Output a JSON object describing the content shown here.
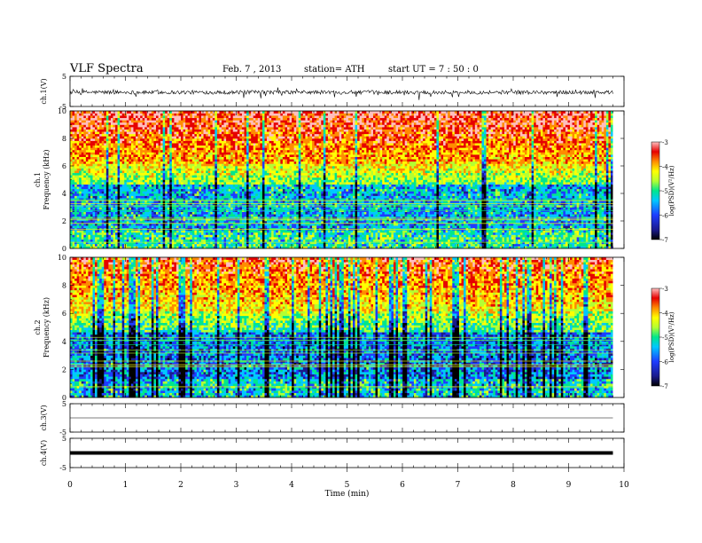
{
  "header": {
    "title": "VLF  Spectra",
    "date": "Feb. 7  , 2013",
    "station": "station= ATH",
    "start": "start  UT  =   7  : 50 : 0"
  },
  "chart_data": [
    {
      "type": "line",
      "panel": "ch1-waveform",
      "ylabel": "ch.1(V)",
      "ylim": [
        -5,
        5
      ],
      "yticks": [
        "5",
        "-5"
      ],
      "xlim": [
        0,
        9.8
      ],
      "description_level": 0,
      "series": [
        {
          "values_range": [
            -2.5,
            1.5
          ]
        }
      ]
    },
    {
      "type": "heatmap",
      "panel": "ch1-spectrogram",
      "ylabel": "ch.1\nFrequency  (kHz)",
      "ylim": [
        0,
        10
      ],
      "yticks": [
        "0",
        "2",
        "4",
        "6",
        "8",
        "10"
      ],
      "xlim": [
        0,
        9.8
      ],
      "colorbar": {
        "label": "log(PSD)(V²/Hz)",
        "range": [
          -7,
          -3
        ],
        "ticks": [
          "-7",
          "-6",
          "-5",
          "-4",
          "-3"
        ]
      }
    },
    {
      "type": "heatmap",
      "panel": "ch2-spectrogram",
      "ylabel": "ch.2\nFrequency  (kHz)",
      "ylim": [
        0,
        10
      ],
      "yticks": [
        "0",
        "2",
        "4",
        "6",
        "8",
        "10"
      ],
      "xlim": [
        0,
        9.8
      ],
      "colorbar": {
        "label": "log(PSD)(V²/Hz)",
        "range": [
          -7,
          -3
        ],
        "ticks": [
          "-7",
          "-6",
          "-5",
          "-4",
          "-3"
        ]
      }
    },
    {
      "type": "line",
      "panel": "ch3-waveform",
      "ylabel": "ch.3(V)",
      "ylim": [
        -5,
        5
      ],
      "yticks": [
        "5",
        "-5"
      ],
      "xlim": [
        0,
        9.8
      ],
      "series": [
        {
          "values_range": [
            0,
            0
          ]
        }
      ]
    },
    {
      "type": "line",
      "panel": "ch4-waveform",
      "ylabel": "ch.4(V)",
      "ylim": [
        -5,
        5
      ],
      "yticks": [
        "5",
        "-5"
      ],
      "xlim": [
        0,
        9.8
      ],
      "series": [
        {
          "values_range": [
            -0.3,
            0.3
          ]
        }
      ]
    }
  ],
  "xaxis": {
    "label": "Time  (min)",
    "range": [
      0,
      10
    ],
    "ticks": [
      "0",
      "1",
      "2",
      "3",
      "4",
      "5",
      "6",
      "7",
      "8",
      "9",
      "10"
    ]
  },
  "colors": {
    "spectro": [
      "#000000",
      "#1a1a8c",
      "#1e3cff",
      "#00c8ff",
      "#00e68c",
      "#b4ff32",
      "#ffff00",
      "#ff8c00",
      "#e60000",
      "#ffbebe"
    ]
  }
}
